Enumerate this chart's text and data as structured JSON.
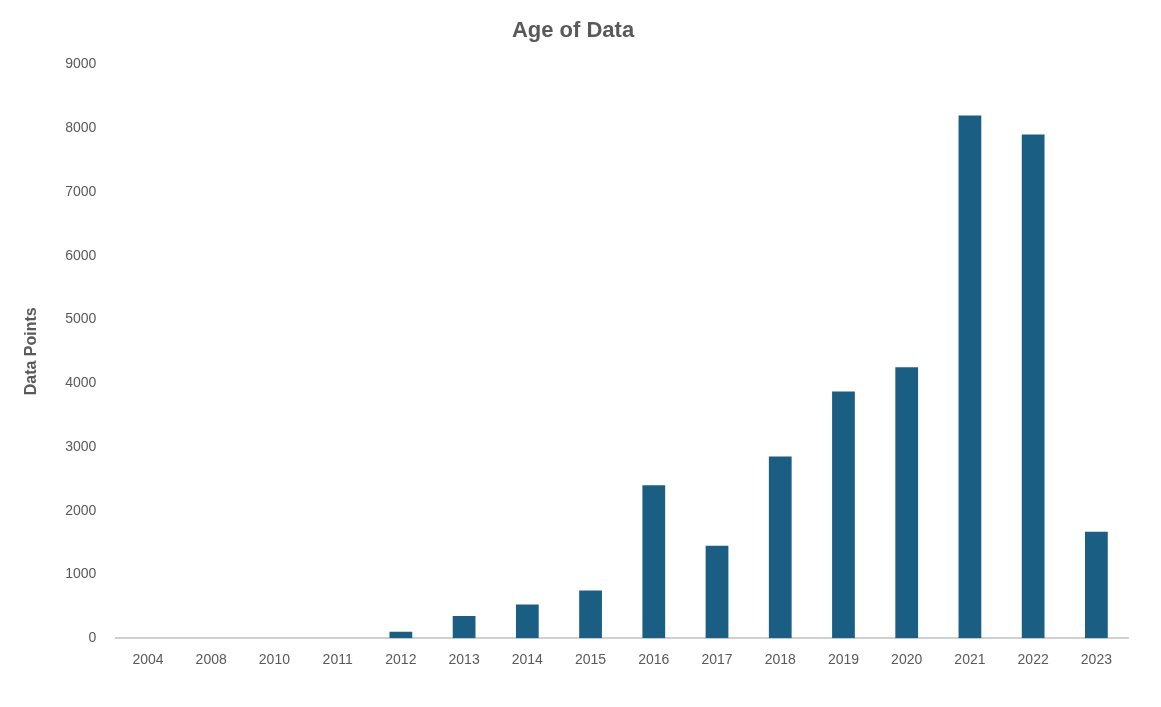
{
  "chart_data": {
    "type": "bar",
    "title": "Age of Data",
    "ylabel": "Data Points",
    "categories": [
      "2004",
      "2008",
      "2010",
      "2011",
      "2012",
      "2013",
      "2014",
      "2015",
      "2016",
      "2017",
      "2018",
      "2019",
      "2020",
      "2021",
      "2022",
      "2023"
    ],
    "values": [
      0,
      0,
      0,
      0,
      100,
      350,
      530,
      750,
      2400,
      1450,
      2850,
      3870,
      4250,
      8200,
      7900,
      1670
    ],
    "color": "#1b5e84",
    "ylim": [
      0,
      9000
    ],
    "yticks": [
      0,
      1000,
      2000,
      3000,
      4000,
      5000,
      6000,
      7000,
      8000,
      9000
    ],
    "grid": false
  }
}
